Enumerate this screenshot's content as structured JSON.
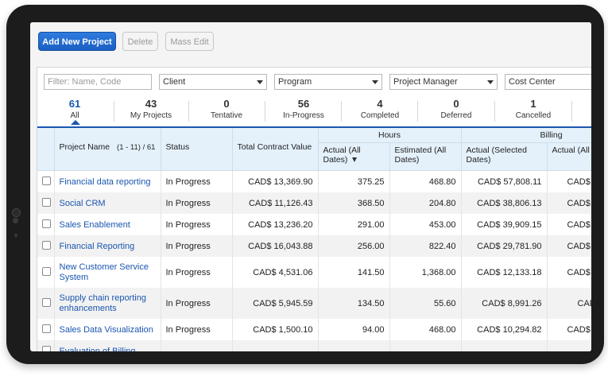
{
  "toolbar": {
    "add_label": "Add New Project",
    "delete_label": "Delete",
    "mass_edit_label": "Mass Edit"
  },
  "filters": {
    "search_placeholder": "Filter: Name, Code",
    "client": "Client",
    "program": "Program",
    "project_manager": "Project Manager",
    "cost_center": "Cost Center"
  },
  "tabs": [
    {
      "count": "61",
      "label": "All"
    },
    {
      "count": "43",
      "label": "My Projects"
    },
    {
      "count": "0",
      "label": "Tentative"
    },
    {
      "count": "56",
      "label": "In-Progress"
    },
    {
      "count": "4",
      "label": "Completed"
    },
    {
      "count": "0",
      "label": "Deferred"
    },
    {
      "count": "1",
      "label": "Cancelled"
    }
  ],
  "table": {
    "headers": {
      "project_name": "Project Name",
      "range": "(1 - 11) / 61",
      "status": "Status",
      "total_contract_value": "Total Contract Value",
      "hours_group": "Hours",
      "actual_all_dates": "Actual (All Dates)",
      "estimated_all_dates": "Estimated (All Dates)",
      "billing_group": "Billing",
      "actual_selected_dates": "Actual (Selected Dates)",
      "actual_all_billing": "Actual (All"
    },
    "rows": [
      {
        "name": "Financial data reporting",
        "status": "In Progress",
        "tcv": "CAD$ 13,369.90",
        "hours_actual": "375.25",
        "hours_est": "468.80",
        "bill_sel": "CAD$ 57,808.11",
        "bill_all": "CAD$"
      },
      {
        "name": "Social CRM",
        "status": "In Progress",
        "tcv": "CAD$ 11,126.43",
        "hours_actual": "368.50",
        "hours_est": "204.80",
        "bill_sel": "CAD$ 38,806.13",
        "bill_all": "CAD$"
      },
      {
        "name": "Sales Enablement",
        "status": "In Progress",
        "tcv": "CAD$ 13,236.20",
        "hours_actual": "291.00",
        "hours_est": "453.00",
        "bill_sel": "CAD$ 39,909.15",
        "bill_all": "CAD$"
      },
      {
        "name": "Financial Reporting",
        "status": "In Progress",
        "tcv": "CAD$ 16,043.88",
        "hours_actual": "256.00",
        "hours_est": "822.40",
        "bill_sel": "CAD$ 29,781.90",
        "bill_all": "CAD$"
      },
      {
        "name": "New Customer Service System",
        "status": "In Progress",
        "tcv": "CAD$ 4,531.06",
        "hours_actual": "141.50",
        "hours_est": "1,368.00",
        "bill_sel": "CAD$ 12,133.18",
        "bill_all": "CAD$"
      },
      {
        "name": "Supply chain reporting enhancements",
        "status": "In Progress",
        "tcv": "CAD$ 5,945.59",
        "hours_actual": "134.50",
        "hours_est": "55.60",
        "bill_sel": "CAD$ 8,991.26",
        "bill_all": "CAD$"
      },
      {
        "name": "Sales Data Visualization",
        "status": "In Progress",
        "tcv": "CAD$ 1,500.10",
        "hours_actual": "94.00",
        "hours_est": "468.00",
        "bill_sel": "CAD$ 10,294.82",
        "bill_all": "CAD$"
      },
      {
        "name": "Evaluation of Billing",
        "status": "",
        "tcv": "",
        "hours_actual": "",
        "hours_est": "",
        "bill_sel": "",
        "bill_all": ""
      }
    ]
  }
}
